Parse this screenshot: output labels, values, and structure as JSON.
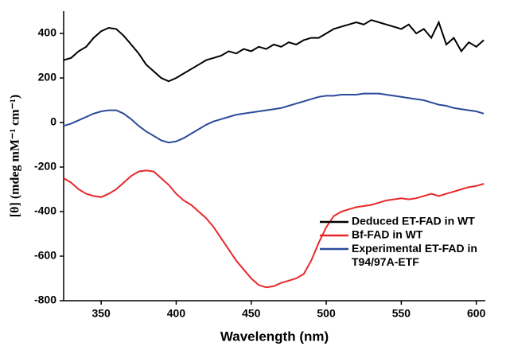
{
  "chart_data": {
    "type": "line",
    "xlabel": "Wavelength (nm)",
    "ylabel": "[θ] (mdeg mM⁻¹ cm⁻¹)",
    "x": [
      325,
      330,
      335,
      340,
      345,
      350,
      355,
      360,
      365,
      370,
      375,
      380,
      385,
      390,
      395,
      400,
      405,
      410,
      415,
      420,
      425,
      430,
      435,
      440,
      445,
      450,
      455,
      460,
      465,
      470,
      475,
      480,
      485,
      490,
      495,
      500,
      505,
      510,
      515,
      520,
      525,
      530,
      535,
      540,
      545,
      550,
      555,
      560,
      565,
      570,
      575,
      580,
      585,
      590,
      595,
      600,
      605
    ],
    "series": [
      {
        "name": "Deduced ET-FAD in WT",
        "color": "#000000",
        "values": [
          280,
          290,
          320,
          340,
          380,
          410,
          425,
          420,
          390,
          350,
          310,
          260,
          230,
          200,
          185,
          200,
          220,
          240,
          260,
          280,
          290,
          300,
          320,
          310,
          330,
          320,
          340,
          330,
          350,
          340,
          360,
          350,
          370,
          380,
          380,
          400,
          420,
          430,
          440,
          450,
          440,
          460,
          450,
          440,
          430,
          420,
          440,
          400,
          420,
          380,
          450,
          350,
          380,
          320,
          360,
          340,
          370
        ]
      },
      {
        "name": "Bf-FAD in WT",
        "color": "#e8282b",
        "values": [
          -250,
          -270,
          -300,
          -320,
          -330,
          -335,
          -320,
          -300,
          -270,
          -240,
          -220,
          -215,
          -220,
          -250,
          -280,
          -320,
          -350,
          -370,
          -400,
          -430,
          -470,
          -520,
          -570,
          -620,
          -660,
          -700,
          -730,
          -740,
          -735,
          -720,
          -710,
          -700,
          -680,
          -620,
          -540,
          -470,
          -420,
          -400,
          -390,
          -380,
          -375,
          -370,
          -360,
          -350,
          -345,
          -340,
          -345,
          -340,
          -330,
          -320,
          -330,
          -320,
          -310,
          -300,
          -290,
          -285,
          -275
        ]
      },
      {
        "name": "Experimental ET-FAD in T94/97A-ETF",
        "color": "#2b4a9b",
        "values": [
          -15,
          -5,
          10,
          25,
          40,
          50,
          55,
          55,
          40,
          15,
          -15,
          -40,
          -60,
          -80,
          -90,
          -85,
          -70,
          -50,
          -30,
          -10,
          5,
          15,
          25,
          35,
          40,
          45,
          50,
          55,
          60,
          65,
          75,
          85,
          95,
          105,
          115,
          120,
          120,
          125,
          125,
          125,
          130,
          130,
          130,
          125,
          120,
          115,
          110,
          105,
          100,
          90,
          80,
          75,
          65,
          60,
          55,
          50,
          40
        ]
      }
    ],
    "xlim": [
      325,
      606
    ],
    "xticks": [
      350,
      400,
      450,
      500,
      550,
      600
    ],
    "ylim": [
      -800,
      500
    ],
    "yticks": [
      -800,
      -600,
      -400,
      -200,
      0,
      200,
      400
    ],
    "legend": "lower right"
  }
}
